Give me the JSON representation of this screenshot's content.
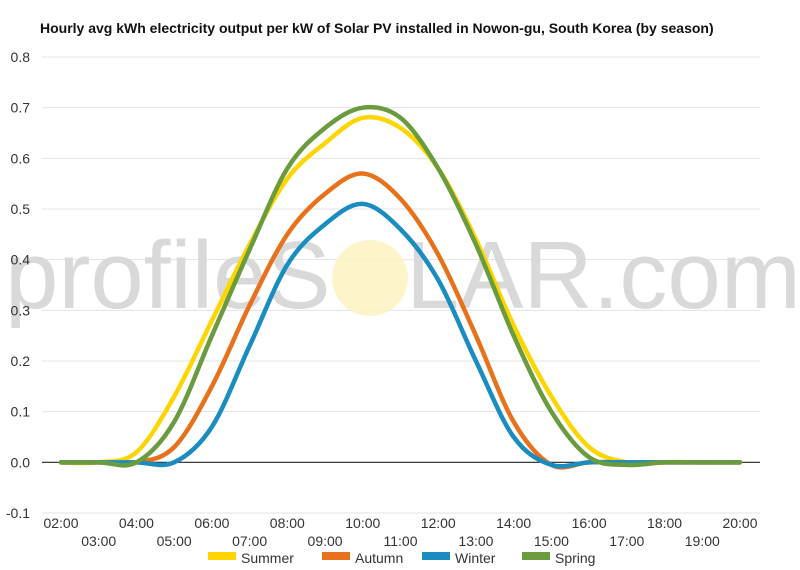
{
  "watermark": {
    "left": "profileS",
    "right": "LAR.com"
  },
  "chart_data": {
    "type": "line",
    "title": "Hourly avg kWh electricity output per kW of Solar PV installed in Nowon-gu, South Korea (by season)",
    "xlabel": "",
    "ylabel": "",
    "x": [
      "02:00",
      "03:00",
      "04:00",
      "05:00",
      "06:00",
      "07:00",
      "08:00",
      "09:00",
      "10:00",
      "11:00",
      "12:00",
      "13:00",
      "14:00",
      "15:00",
      "16:00",
      "17:00",
      "18:00",
      "19:00",
      "20:00"
    ],
    "x_ticks_top": [
      "02:00",
      "04:00",
      "06:00",
      "08:00",
      "10:00",
      "12:00",
      "14:00",
      "16:00",
      "18:00",
      "20:00"
    ],
    "x_ticks_bottom": [
      "03:00",
      "05:00",
      "07:00",
      "09:00",
      "11:00",
      "13:00",
      "15:00",
      "17:00",
      "19:00"
    ],
    "ylim": [
      -0.1,
      0.8
    ],
    "y_ticks": [
      "-0.1",
      "0.0",
      "0.1",
      "0.2",
      "0.3",
      "0.4",
      "0.5",
      "0.6",
      "0.7",
      "0.8"
    ],
    "grid": true,
    "legend_position": "bottom",
    "series": [
      {
        "name": "Summer",
        "color": "#ffd500",
        "values": [
          0,
          0,
          0.02,
          0.13,
          0.28,
          0.43,
          0.56,
          0.63,
          0.68,
          0.66,
          0.58,
          0.44,
          0.27,
          0.13,
          0.03,
          0,
          0,
          0,
          0
        ]
      },
      {
        "name": "Autumn",
        "color": "#e8711c",
        "values": [
          0,
          0,
          0,
          0.03,
          0.15,
          0.31,
          0.45,
          0.53,
          0.57,
          0.52,
          0.41,
          0.25,
          0.08,
          -0.005,
          0,
          0,
          0,
          0,
          0
        ]
      },
      {
        "name": "Winter",
        "color": "#1a8cc0",
        "values": [
          0,
          0,
          0,
          0,
          0.07,
          0.23,
          0.39,
          0.47,
          0.51,
          0.46,
          0.36,
          0.2,
          0.05,
          -0.005,
          0,
          0,
          0,
          0,
          0
        ]
      },
      {
        "name": "Spring",
        "color": "#6a9b3f",
        "values": [
          0,
          0,
          0,
          0.08,
          0.25,
          0.42,
          0.58,
          0.66,
          0.7,
          0.68,
          0.58,
          0.43,
          0.25,
          0.1,
          0.01,
          -0.005,
          0,
          0,
          0
        ]
      }
    ]
  }
}
